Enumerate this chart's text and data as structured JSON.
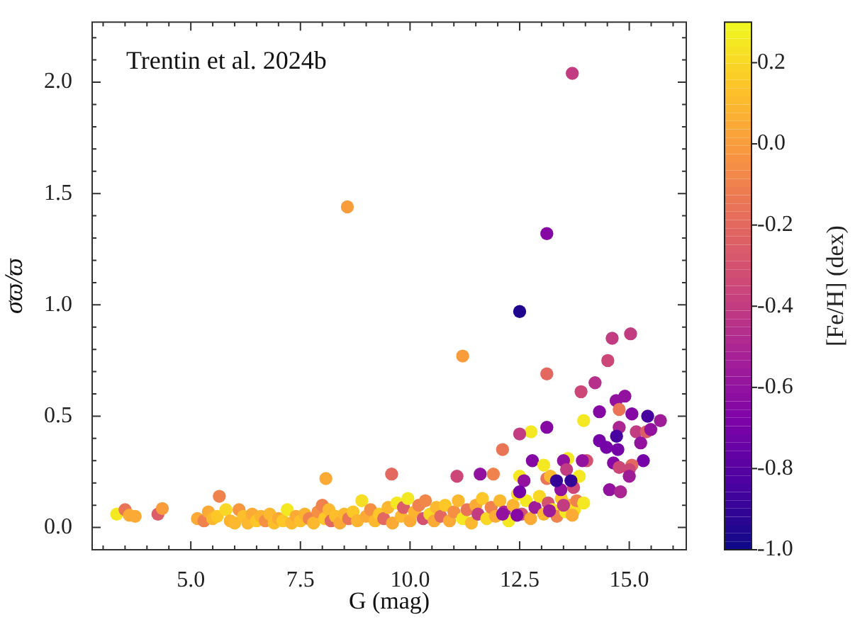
{
  "chart_data": {
    "type": "scatter",
    "xlabel": "G (mag)",
    "ylabel": "σϖ/ϖ",
    "clabel": "[Fe/H] (dex)",
    "annotations": [
      "Trentin et al. 2024b"
    ],
    "xlim": [
      2.75,
      16.3
    ],
    "xticks": [
      {
        "value": 3,
        "label": null
      },
      {
        "value": 3.5,
        "label": null
      },
      {
        "value": 4,
        "label": null
      },
      {
        "value": 4.5,
        "label": null
      },
      {
        "value": 5,
        "label": "5.0"
      },
      {
        "value": 5.5,
        "label": null
      },
      {
        "value": 6,
        "label": null
      },
      {
        "value": 6.5,
        "label": null
      },
      {
        "value": 7,
        "label": null
      },
      7.5,
      {
        "value": 8,
        "label": null
      },
      {
        "value": 8.5,
        "label": null
      },
      {
        "value": 9,
        "label": null
      },
      {
        "value": 9.5,
        "label": null
      },
      {
        "value": 10,
        "label": "10.0"
      },
      {
        "value": 10.5,
        "label": null
      },
      {
        "value": 11,
        "label": null
      },
      {
        "value": 11.5,
        "label": null
      },
      {
        "value": 12,
        "label": null
      },
      12.5,
      {
        "value": 13,
        "label": null
      },
      {
        "value": 13.5,
        "label": null
      },
      {
        "value": 14,
        "label": null
      },
      {
        "value": 14.5,
        "label": null
      },
      {
        "value": 15,
        "label": "15.0"
      },
      {
        "value": 15.5,
        "label": null
      },
      {
        "value": 16,
        "label": null
      }
    ],
    "ylim": [
      -0.1,
      2.27
    ],
    "yticks": [
      {
        "value": 0,
        "label": "0.0"
      },
      {
        "value": 0.1,
        "label": null
      },
      {
        "value": 0.2,
        "label": null
      },
      {
        "value": 0.3,
        "label": null
      },
      {
        "value": 0.4,
        "label": null
      },
      0.5,
      {
        "value": 0.6,
        "label": null
      },
      {
        "value": 0.7,
        "label": null
      },
      {
        "value": 0.8,
        "label": null
      },
      {
        "value": 0.9,
        "label": null
      },
      {
        "value": 1,
        "label": "1.0"
      },
      {
        "value": 1.1,
        "label": null
      },
      {
        "value": 1.2,
        "label": null
      },
      {
        "value": 1.3,
        "label": null
      },
      {
        "value": 1.4,
        "label": null
      },
      1.5,
      {
        "value": 1.6,
        "label": null
      },
      {
        "value": 1.7,
        "label": null
      },
      {
        "value": 1.8,
        "label": null
      },
      {
        "value": 1.9,
        "label": null
      },
      {
        "value": 2,
        "label": "2.0"
      },
      {
        "value": 2.1,
        "label": null
      },
      {
        "value": 2.2,
        "label": null
      }
    ],
    "clim": [
      -1.0,
      0.3
    ],
    "cticks": [
      {
        "value": -1,
        "label": "-1.0"
      },
      -0.8,
      -0.6,
      -0.4,
      -0.2,
      {
        "value": 0,
        "label": "0.0"
      },
      0.2
    ],
    "grid": false,
    "legend": false,
    "marker": "circle",
    "series": [
      {
        "x": [
          5.15,
          5.3,
          5.4,
          5.5,
          5.6,
          5.8,
          5.9,
          6.0,
          6.1,
          6.2,
          6.3,
          6.4,
          6.5,
          6.6,
          6.7,
          6.8,
          6.9,
          7.0,
          7.1,
          7.2,
          7.3,
          7.4,
          7.5,
          7.6,
          7.7,
          7.8,
          7.9,
          8.0,
          8.05,
          8.15,
          8.2,
          8.3,
          8.4,
          8.5,
          8.6,
          8.7,
          8.8,
          8.9,
          9.0,
          9.1,
          9.2,
          9.3,
          9.4,
          9.5,
          9.6,
          9.7,
          9.8,
          9.85,
          9.95,
          10.0,
          10.1,
          10.2,
          10.3,
          10.35,
          10.45,
          10.55,
          10.6,
          10.7,
          10.8,
          10.9,
          11.0,
          11.1,
          11.2,
          11.3,
          11.4,
          11.5,
          11.55,
          11.65,
          11.75,
          11.85,
          11.95,
          12.05,
          12.15,
          12.25,
          12.35,
          12.45,
          12.55,
          12.65,
          12.75,
          12.85,
          12.95,
          13.05,
          13.15,
          13.25,
          13.35,
          13.45,
          13.55,
          13.65,
          13.75,
          13.8,
          3.31,
          3.5,
          3.6,
          3.73,
          4.25,
          4.35,
          5.65,
          8.08,
          9.58,
          8.57,
          11.2,
          12.5,
          13.12,
          13.7,
          13.12,
          14.61,
          15.03,
          14.51,
          14.22,
          13.9,
          14.32,
          14.7,
          14.9,
          14.77,
          15.06,
          15.42,
          15.71,
          14.77,
          13.96,
          13.12,
          12.76,
          12.5,
          15.16,
          15.39,
          15.49,
          14.71,
          14.32,
          14.48,
          14.74,
          15.26,
          12.11,
          12.79,
          15.32,
          14.64,
          15.06,
          15.0,
          15.0,
          14.77,
          13.6,
          13.5,
          14.03,
          13.93,
          13.05,
          14.55,
          14.8,
          11.07,
          11.6,
          11.9,
          12.5,
          12.6,
          13.12,
          13.2,
          13.57,
          13.86,
          12.5,
          12.11,
          12.44,
          13.18,
          13.5,
          13.96,
          13.7,
          13.44,
          13.73,
          13.34,
          13.67
        ],
        "values": [
          0.04,
          0.03,
          0.07,
          0.04,
          0.05,
          0.08,
          0.03,
          0.02,
          0.08,
          0.05,
          0.02,
          0.06,
          0.03,
          0.05,
          0.03,
          0.06,
          0.02,
          0.04,
          0.03,
          0.08,
          0.02,
          0.05,
          0.03,
          0.06,
          0.04,
          0.02,
          0.07,
          0.1,
          0.04,
          0.08,
          0.03,
          0.05,
          0.02,
          0.06,
          0.04,
          0.07,
          0.03,
          0.12,
          0.05,
          0.08,
          0.03,
          0.06,
          0.04,
          0.09,
          0.02,
          0.11,
          0.05,
          0.09,
          0.13,
          0.03,
          0.07,
          0.1,
          0.04,
          0.12,
          0.06,
          0.03,
          0.09,
          0.05,
          0.1,
          0.03,
          0.07,
          0.12,
          0.04,
          0.08,
          0.02,
          0.1,
          0.06,
          0.13,
          0.04,
          0.09,
          0.05,
          0.12,
          0.07,
          0.03,
          0.1,
          0.15,
          0.06,
          0.12,
          0.04,
          0.09,
          0.14,
          0.06,
          0.11,
          0.08,
          0.05,
          0.13,
          0.07,
          0.1,
          0.08,
          0.12,
          0.06,
          0.08,
          0.055,
          0.05,
          0.06,
          0.085,
          0.14,
          0.22,
          0.24,
          1.44,
          0.77,
          0.97,
          1.32,
          2.04,
          0.69,
          0.85,
          0.87,
          0.75,
          0.65,
          0.61,
          0.52,
          0.57,
          0.59,
          0.53,
          0.51,
          0.5,
          0.48,
          0.45,
          0.48,
          0.45,
          0.43,
          0.42,
          0.43,
          0.43,
          0.44,
          0.41,
          0.39,
          0.36,
          0.35,
          0.38,
          0.35,
          0.3,
          0.3,
          0.29,
          0.28,
          0.26,
          0.23,
          0.27,
          0.31,
          0.3,
          0.3,
          0.3,
          0.28,
          0.17,
          0.16,
          0.23,
          0.24,
          0.24,
          0.23,
          0.21,
          0.22,
          0.23,
          0.26,
          0.23,
          0.16,
          0.06,
          0.055,
          0.075,
          0.1,
          0.11,
          0.055,
          0.17,
          0.18,
          0.21,
          0.21
        ],
        "cvalues": [
          0.05,
          -0.1,
          0.05,
          0.1,
          0.15,
          0.2,
          0.08,
          0.1,
          -0.02,
          0.12,
          0.1,
          0.05,
          0.15,
          0.08,
          -0.05,
          0.1,
          0.12,
          0.05,
          0.15,
          0.25,
          0.1,
          0.05,
          0.12,
          0.08,
          -0.1,
          0.1,
          -0.05,
          -0.1,
          0.15,
          0.1,
          -0.2,
          0.12,
          0.05,
          0.1,
          -0.15,
          0.15,
          0.08,
          0.22,
          0.05,
          -0.05,
          0.1,
          0.15,
          -0.2,
          0.1,
          0.05,
          0.25,
          0.1,
          -0.25,
          0.25,
          0.05,
          0.08,
          -0.1,
          -0.3,
          -0.08,
          0.2,
          0.05,
          0.1,
          -0.2,
          0.15,
          0.05,
          -0.05,
          0.1,
          0.25,
          -0.15,
          0.1,
          0.05,
          -0.4,
          0.15,
          0.2,
          -0.1,
          0.05,
          0.1,
          -0.5,
          0.25,
          0.08,
          0.2,
          -0.3,
          0.25,
          0.05,
          -0.55,
          0.2,
          0.1,
          -0.3,
          0.25,
          -0.1,
          0.15,
          0.25,
          0.05,
          0.22,
          -0.1,
          0.25,
          -0.15,
          0.05,
          0.05,
          -0.25,
          0.0,
          -0.1,
          0.05,
          -0.2,
          0.0,
          0.0,
          -0.95,
          -0.65,
          -0.4,
          -0.2,
          -0.4,
          -0.4,
          -0.35,
          -0.45,
          -0.35,
          -0.65,
          -0.6,
          -0.6,
          -0.15,
          -0.65,
          -0.85,
          -0.55,
          -0.5,
          0.25,
          -0.65,
          0.25,
          -0.4,
          -0.4,
          -0.25,
          -0.6,
          -0.85,
          -0.7,
          -0.7,
          -0.7,
          -0.6,
          -0.15,
          -0.65,
          -0.7,
          -0.65,
          -0.2,
          -0.35,
          -0.55,
          -0.35,
          0.25,
          -0.6,
          -0.3,
          -0.6,
          0.25,
          -0.6,
          -0.5,
          -0.35,
          -0.6,
          -0.1,
          0.25,
          -0.6,
          -0.15,
          0.1,
          -0.4,
          0.25,
          -0.7,
          -0.6,
          -0.65,
          -0.55,
          -0.4,
          0.25,
          0.05,
          -0.6,
          -0.35,
          -0.9,
          -0.9
        ]
      }
    ]
  }
}
